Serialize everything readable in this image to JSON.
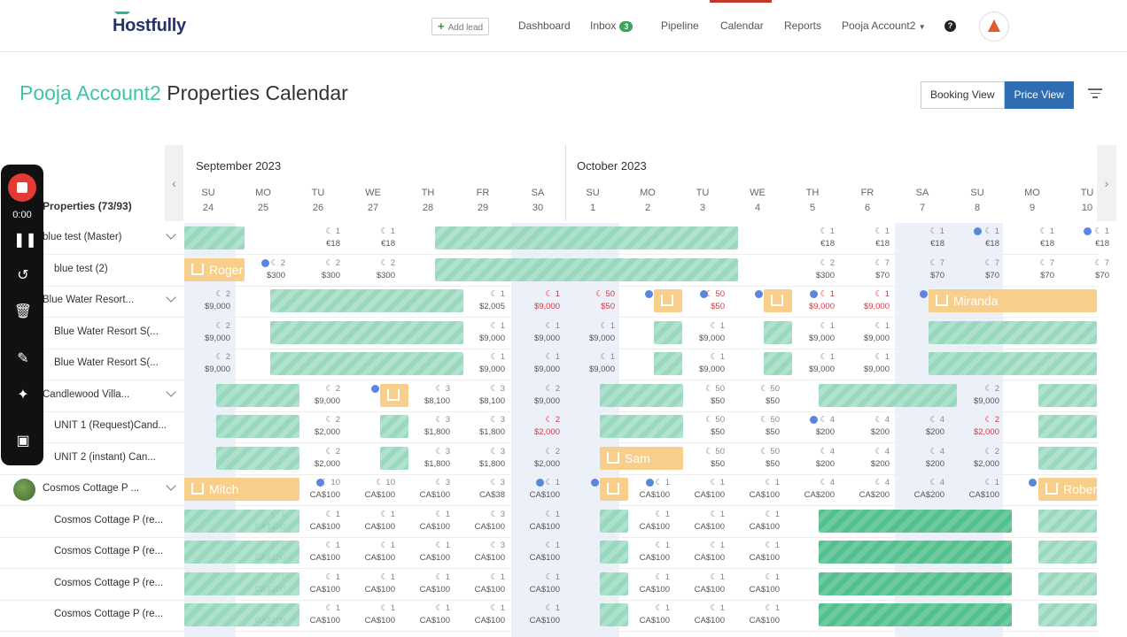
{
  "app": {
    "logo": "Hostfully"
  },
  "nav": {
    "add_lead": "Add lead",
    "dashboard": "Dashboard",
    "inbox": "Inbox",
    "inbox_count": "3",
    "pipeline": "Pipeline",
    "calendar": "Calendar",
    "reports": "Reports",
    "account": "Pooja Account2",
    "help": "?"
  },
  "header": {
    "account": "Pooja Account2",
    "title": " Properties Calendar",
    "booking_view": "Booking View",
    "price_view": "Price View"
  },
  "calendar": {
    "months": [
      "September 2023",
      "October 2023"
    ],
    "properties_label": "Properties (73/93)",
    "days": [
      {
        "dow": "SU",
        "d": "24"
      },
      {
        "dow": "MO",
        "d": "25"
      },
      {
        "dow": "TU",
        "d": "26"
      },
      {
        "dow": "WE",
        "d": "27"
      },
      {
        "dow": "TH",
        "d": "28"
      },
      {
        "dow": "FR",
        "d": "29"
      },
      {
        "dow": "SA",
        "d": "30"
      },
      {
        "dow": "SU",
        "d": "1"
      },
      {
        "dow": "MO",
        "d": "2"
      },
      {
        "dow": "TU",
        "d": "3"
      },
      {
        "dow": "WE",
        "d": "4"
      },
      {
        "dow": "TH",
        "d": "5"
      },
      {
        "dow": "FR",
        "d": "6"
      },
      {
        "dow": "SA",
        "d": "7"
      },
      {
        "dow": "SU",
        "d": "8"
      },
      {
        "dow": "MO",
        "d": "9"
      },
      {
        "dow": "TU",
        "d": "10"
      }
    ],
    "rows": [
      {
        "label": "blue test (Master)",
        "parent": true,
        "cells": [
          null,
          null,
          [
            "1",
            "€18"
          ],
          [
            "1",
            "€18"
          ],
          null,
          null,
          null,
          null,
          null,
          null,
          null,
          [
            "1",
            "€18"
          ],
          [
            "1",
            "€18"
          ],
          [
            "1",
            "€18"
          ],
          [
            "1",
            "€18"
          ],
          [
            "1",
            "€18"
          ],
          [
            "1",
            "€18"
          ]
        ]
      },
      {
        "label": "blue test (2)",
        "parent": false,
        "cells": [
          null,
          [
            "2",
            "$300"
          ],
          [
            "2",
            "$300"
          ],
          [
            "2",
            "$300"
          ],
          null,
          null,
          null,
          null,
          null,
          null,
          null,
          [
            "2",
            "$300"
          ],
          [
            "7",
            "$70"
          ],
          [
            "7",
            "$70"
          ],
          [
            "7",
            "$70"
          ],
          [
            "7",
            "$70"
          ],
          [
            "7",
            "$70"
          ]
        ]
      },
      {
        "label": "Blue Water Resort...",
        "parent": true,
        "cells": [
          [
            "2",
            "$9,000"
          ],
          null,
          null,
          null,
          null,
          [
            "1",
            "$2,005"
          ],
          [
            "1",
            "$9,000",
            "r"
          ],
          [
            "50",
            "$50",
            "r"
          ],
          null,
          [
            "50",
            "$50",
            "r"
          ],
          null,
          [
            "1",
            "$9,000",
            "r"
          ],
          [
            "1",
            "$9,000",
            "r"
          ],
          null,
          null,
          null,
          null
        ]
      },
      {
        "label": "Blue Water Resort S(...",
        "parent": false,
        "cells": [
          [
            "2",
            "$9,000"
          ],
          null,
          null,
          null,
          null,
          [
            "1",
            "$9,000"
          ],
          [
            "1",
            "$9,000"
          ],
          [
            "1",
            "$9,000"
          ],
          null,
          [
            "1",
            "$9,000"
          ],
          null,
          [
            "1",
            "$9,000"
          ],
          [
            "1",
            "$9,000"
          ],
          null,
          null,
          null,
          null
        ]
      },
      {
        "label": "Blue Water Resort S(...",
        "parent": false,
        "cells": [
          [
            "2",
            "$9,000"
          ],
          null,
          null,
          null,
          null,
          [
            "1",
            "$9,000"
          ],
          [
            "1",
            "$9,000"
          ],
          [
            "1",
            "$9,000"
          ],
          null,
          [
            "1",
            "$9,000"
          ],
          null,
          [
            "1",
            "$9,000"
          ],
          [
            "1",
            "$9,000"
          ],
          null,
          null,
          null,
          null
        ]
      },
      {
        "label": "Candlewood Villa...",
        "parent": true,
        "cells": [
          null,
          null,
          [
            "2",
            "$9,000"
          ],
          null,
          [
            "3",
            "$8,100"
          ],
          [
            "3",
            "$8,100"
          ],
          [
            "2",
            "$9,000"
          ],
          null,
          null,
          [
            "50",
            "$50"
          ],
          [
            "50",
            "$50"
          ],
          null,
          null,
          null,
          [
            "2",
            "$9,000"
          ],
          null,
          null
        ]
      },
      {
        "label": "UNIT 1 (Request)Cand...",
        "parent": false,
        "cells": [
          null,
          null,
          [
            "2",
            "$2,000"
          ],
          null,
          [
            "3",
            "$1,800"
          ],
          [
            "3",
            "$1,800"
          ],
          [
            "2",
            "$2,000",
            "r"
          ],
          null,
          null,
          [
            "50",
            "$50"
          ],
          [
            "50",
            "$50"
          ],
          [
            "4",
            "$200"
          ],
          [
            "4",
            "$200"
          ],
          [
            "4",
            "$200"
          ],
          [
            "2",
            "$2,000",
            "r"
          ],
          null,
          null
        ]
      },
      {
        "label": "UNIT 2 (instant) Can...",
        "parent": false,
        "cells": [
          null,
          null,
          [
            "2",
            "$2,000"
          ],
          null,
          [
            "3",
            "$1,800"
          ],
          [
            "3",
            "$1,800"
          ],
          [
            "2",
            "$2,000"
          ],
          null,
          null,
          [
            "50",
            "$50"
          ],
          [
            "50",
            "$50"
          ],
          [
            "4",
            "$200"
          ],
          [
            "4",
            "$200"
          ],
          [
            "4",
            "$200"
          ],
          [
            "2",
            "$2,000"
          ],
          null,
          null
        ]
      },
      {
        "label": "Cosmos Cottage P ...",
        "parent": true,
        "cells": [
          null,
          null,
          [
            "10",
            "CA$100"
          ],
          [
            "10",
            "CA$100"
          ],
          [
            "3",
            "CA$100"
          ],
          [
            "3",
            "CA$38"
          ],
          [
            "1",
            "CA$100"
          ],
          null,
          [
            "1",
            "CA$100"
          ],
          [
            "1",
            "CA$100"
          ],
          [
            "1",
            "CA$100"
          ],
          [
            "4",
            "CA$200"
          ],
          [
            "4",
            "CA$200"
          ],
          [
            "4",
            "CA$200"
          ],
          [
            "1",
            "CA$100"
          ],
          null,
          null
        ]
      },
      {
        "label": "Cosmos Cottage P (re...",
        "parent": false,
        "cells": [
          null,
          [
            "1",
            "CA$100"
          ],
          [
            "1",
            "CA$100"
          ],
          [
            "1",
            "CA$100"
          ],
          [
            "1",
            "CA$100"
          ],
          [
            "3",
            "CA$100"
          ],
          [
            "1",
            "CA$100"
          ],
          null,
          [
            "1",
            "CA$100"
          ],
          [
            "1",
            "CA$100"
          ],
          [
            "1",
            "CA$100"
          ],
          null,
          null,
          null,
          null,
          null,
          null
        ]
      },
      {
        "label": "Cosmos Cottage P (re...",
        "parent": false,
        "cells": [
          null,
          [
            "1",
            "CA$100"
          ],
          [
            "1",
            "CA$100"
          ],
          [
            "1",
            "CA$100"
          ],
          [
            "1",
            "CA$100"
          ],
          [
            "3",
            "CA$100"
          ],
          [
            "1",
            "CA$100"
          ],
          null,
          [
            "1",
            "CA$100"
          ],
          [
            "1",
            "CA$100"
          ],
          [
            "1",
            "CA$100"
          ],
          null,
          null,
          null,
          null,
          null,
          null
        ]
      },
      {
        "label": "Cosmos Cottage P (re...",
        "parent": false,
        "cells": [
          null,
          [
            "1",
            "CA$100"
          ],
          [
            "1",
            "CA$100"
          ],
          [
            "1",
            "CA$100"
          ],
          [
            "1",
            "CA$100"
          ],
          [
            "1",
            "CA$100"
          ],
          [
            "1",
            "CA$100"
          ],
          null,
          [
            "1",
            "CA$100"
          ],
          [
            "1",
            "CA$100"
          ],
          [
            "1",
            "CA$100"
          ],
          null,
          null,
          null,
          null,
          null,
          null
        ]
      },
      {
        "label": "Cosmos Cottage P (re...",
        "parent": false,
        "cells": [
          null,
          [
            "1",
            "CA$100"
          ],
          [
            "1",
            "CA$100"
          ],
          [
            "1",
            "CA$100"
          ],
          [
            "1",
            "CA$100"
          ],
          [
            "1",
            "CA$100"
          ],
          [
            "1",
            "CA$100"
          ],
          null,
          [
            "1",
            "CA$100"
          ],
          [
            "1",
            "CA$100"
          ],
          [
            "1",
            "CA$100"
          ],
          null,
          null,
          null,
          null,
          null,
          null
        ]
      }
    ],
    "bookings": [
      "Roger",
      "Miranda",
      "Sam",
      "Mitch",
      "Robert"
    ]
  },
  "recorder": {
    "time": "0:00"
  },
  "colors": {
    "accent": "#3cc4a8",
    "primary": "#2f6db3",
    "badge": "#3aa557",
    "booking": "#f7cf8a",
    "block": "#8fd5b8"
  }
}
